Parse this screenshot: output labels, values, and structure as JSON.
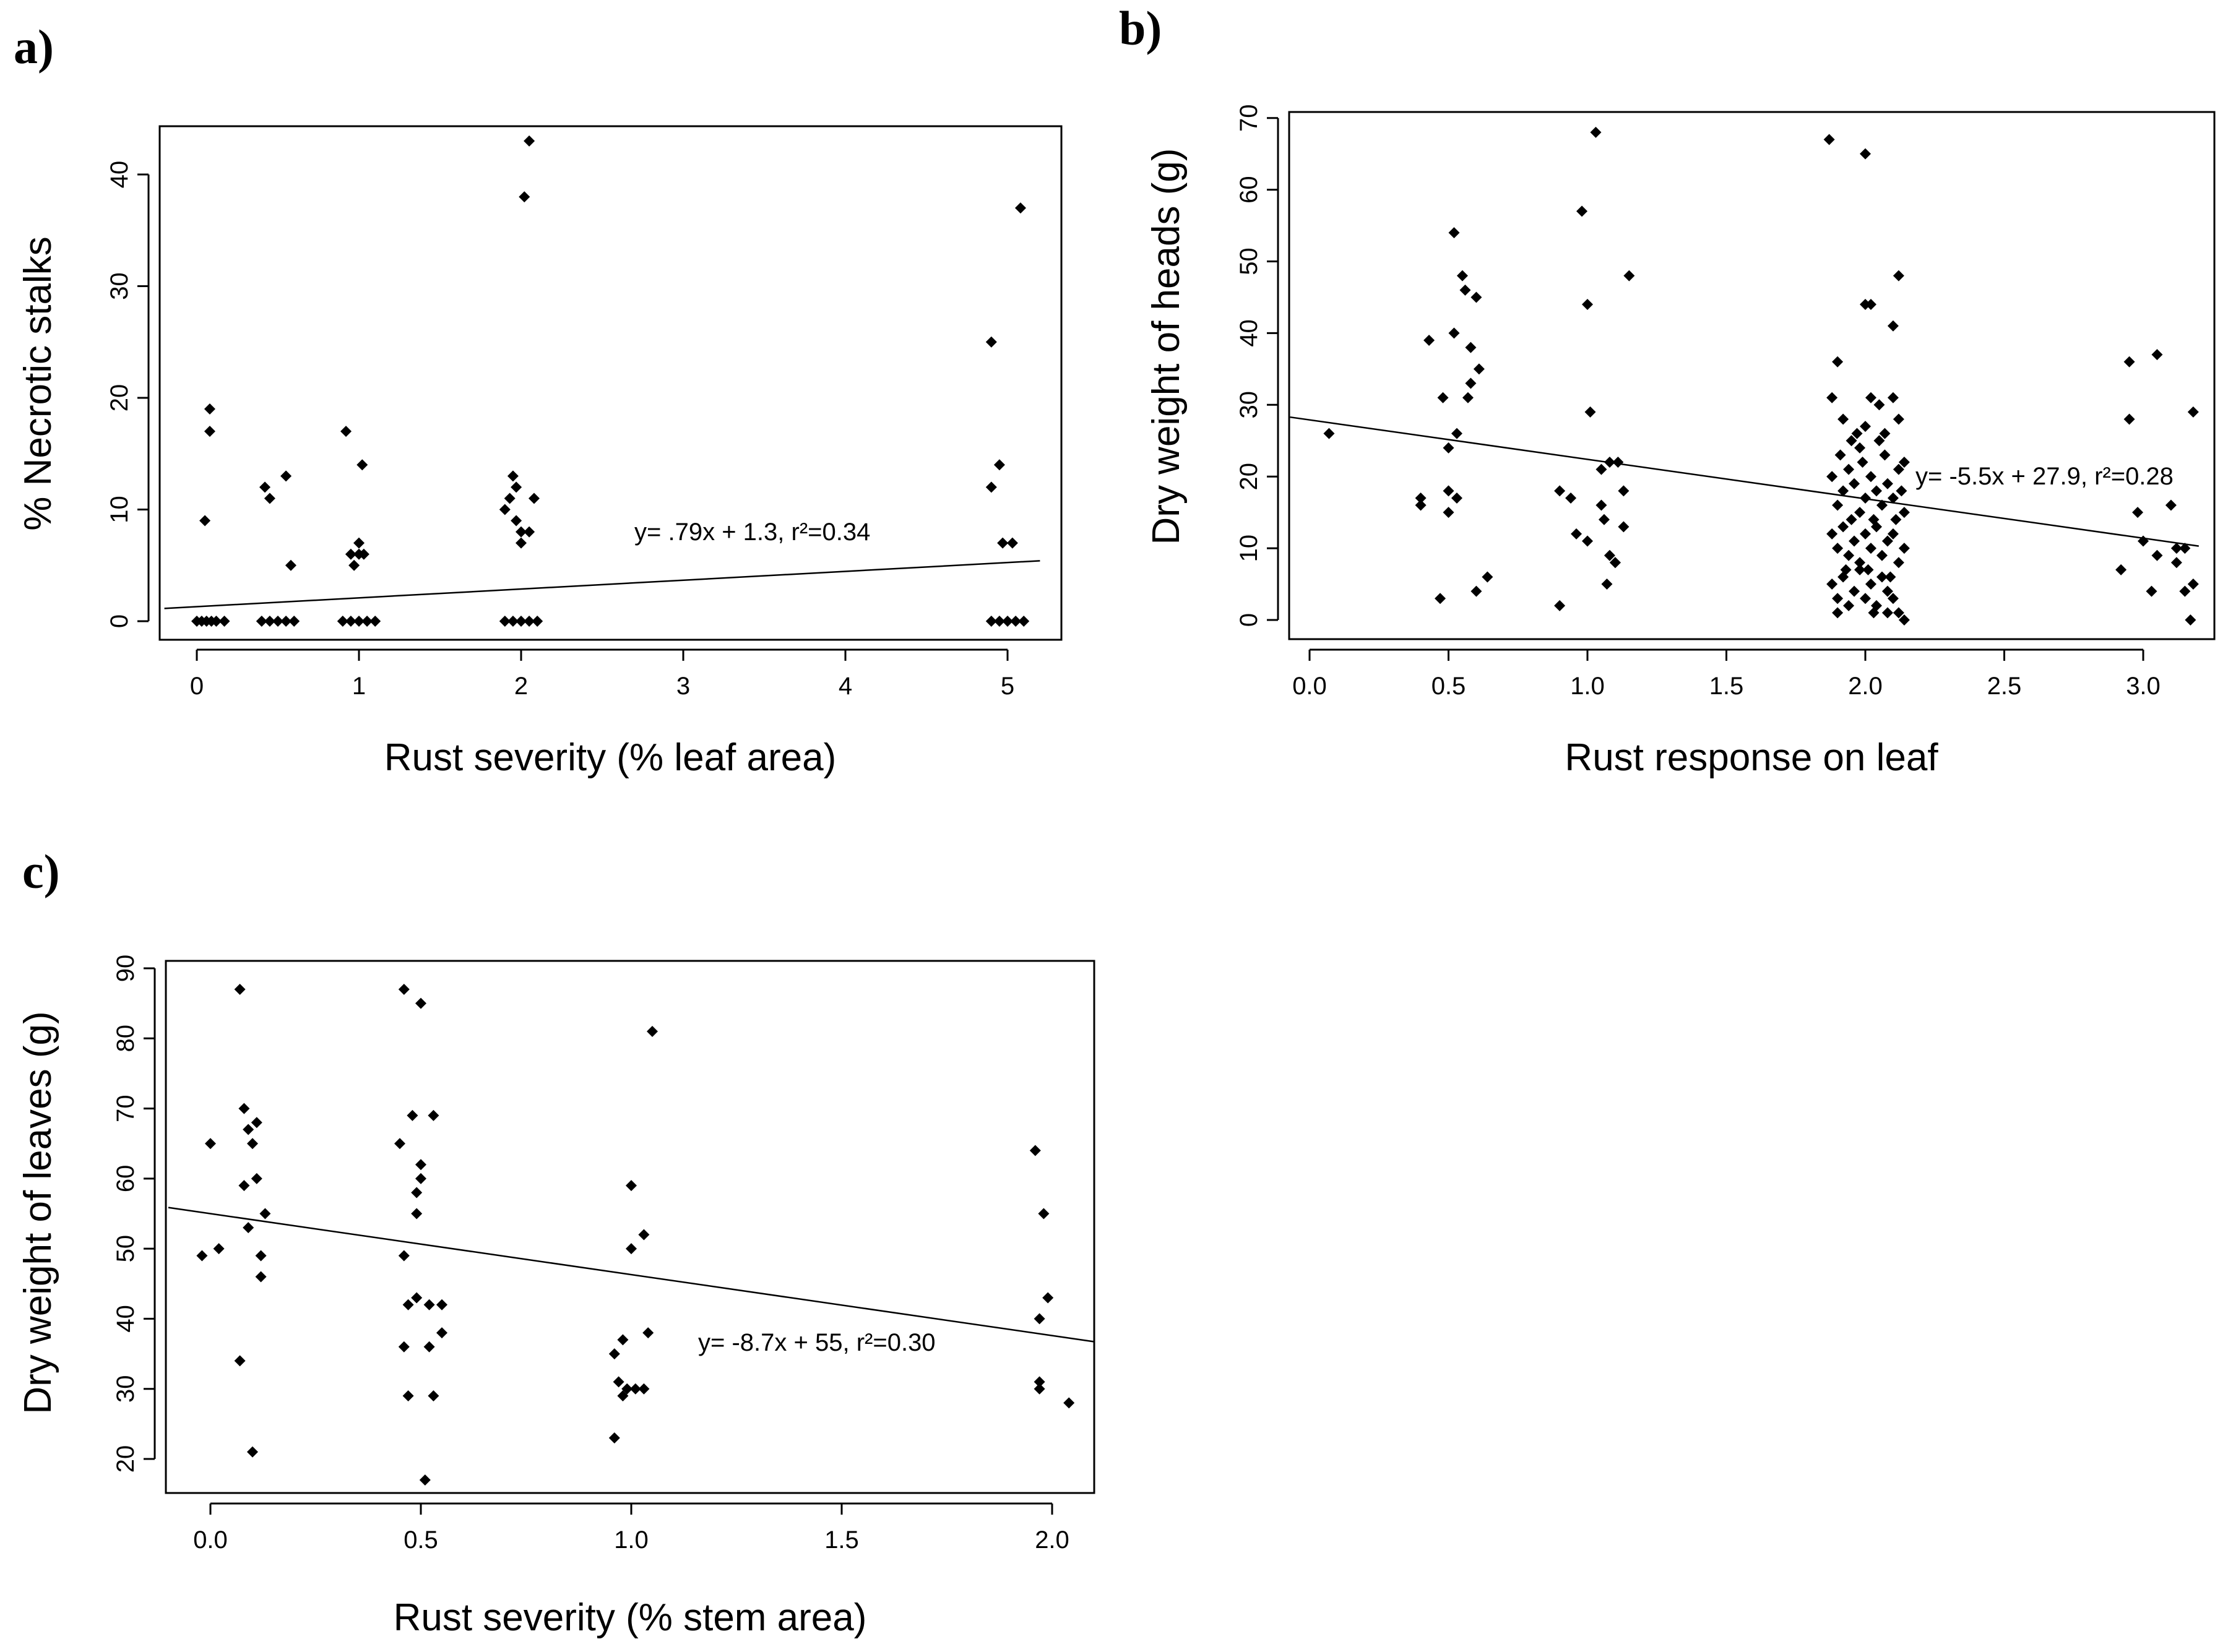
{
  "chart_data": [
    {
      "type": "scatter",
      "panel": "a)",
      "xlabel": "Rust severity (% leaf area)",
      "ylabel": "% Necrotic stalks",
      "x_ticks": [
        "0",
        "1",
        "2",
        "3",
        "4",
        "5"
      ],
      "y_ticks": [
        "0",
        "10",
        "20",
        "30",
        "40"
      ],
      "ylim": [
        -2,
        45
      ],
      "regression": {
        "label": "y= .79x + 1.3, r²=0.34",
        "slope": 0.79,
        "intercept": 1.3
      },
      "points": [
        [
          0.0,
          0
        ],
        [
          0.03,
          0
        ],
        [
          0.06,
          0
        ],
        [
          0.09,
          0
        ],
        [
          0.12,
          0
        ],
        [
          0.17,
          0
        ],
        [
          0.05,
          9
        ],
        [
          0.08,
          17
        ],
        [
          0.08,
          19
        ],
        [
          0.4,
          0
        ],
        [
          0.45,
          0
        ],
        [
          0.5,
          0
        ],
        [
          0.55,
          0
        ],
        [
          0.6,
          0
        ],
        [
          0.42,
          12
        ],
        [
          0.45,
          11
        ],
        [
          0.55,
          13
        ],
        [
          0.58,
          5
        ],
        [
          0.9,
          0
        ],
        [
          0.95,
          0
        ],
        [
          1.0,
          0
        ],
        [
          1.05,
          0
        ],
        [
          1.1,
          0
        ],
        [
          0.92,
          17
        ],
        [
          0.95,
          6
        ],
        [
          0.97,
          5
        ],
        [
          1.0,
          6
        ],
        [
          1.0,
          7
        ],
        [
          1.02,
          14
        ],
        [
          1.03,
          6
        ],
        [
          1.9,
          0
        ],
        [
          1.95,
          0
        ],
        [
          2.0,
          0
        ],
        [
          2.05,
          0
        ],
        [
          2.1,
          0
        ],
        [
          1.9,
          10
        ],
        [
          1.93,
          11
        ],
        [
          1.95,
          13
        ],
        [
          1.97,
          12
        ],
        [
          1.97,
          9
        ],
        [
          2.0,
          8
        ],
        [
          2.0,
          7
        ],
        [
          2.02,
          38
        ],
        [
          2.05,
          43
        ],
        [
          2.05,
          8
        ],
        [
          2.08,
          11
        ],
        [
          4.9,
          0
        ],
        [
          4.95,
          0
        ],
        [
          5.0,
          0
        ],
        [
          5.05,
          0
        ],
        [
          5.1,
          0
        ],
        [
          4.9,
          25
        ],
        [
          4.9,
          12
        ],
        [
          4.95,
          14
        ],
        [
          4.97,
          7
        ],
        [
          5.03,
          7
        ],
        [
          5.08,
          37
        ]
      ]
    },
    {
      "type": "scatter",
      "panel": "b)",
      "xlabel": "Rust response on leaf",
      "ylabel": "Dry weight of heads (g)",
      "x_ticks": [
        "0.0",
        "0.5",
        "1.0",
        "1.5",
        "2.0",
        "2.5",
        "3.0"
      ],
      "y_ticks": [
        "0",
        "10",
        "20",
        "30",
        "40",
        "50",
        "60",
        "70"
      ],
      "xlim": [
        -0.06,
        3.2
      ],
      "ylim": [
        -2,
        70.5
      ],
      "regression": {
        "label": "y= -5.5x + 27.9, r²=0.28",
        "slope": -5.5,
        "intercept": 27.9
      },
      "points": [
        [
          0.07,
          26
        ],
        [
          0.4,
          16
        ],
        [
          0.4,
          17
        ],
        [
          0.43,
          39
        ],
        [
          0.47,
          3
        ],
        [
          0.48,
          31
        ],
        [
          0.5,
          15
        ],
        [
          0.5,
          18
        ],
        [
          0.5,
          24
        ],
        [
          0.52,
          40
        ],
        [
          0.52,
          54
        ],
        [
          0.53,
          26
        ],
        [
          0.53,
          17
        ],
        [
          0.55,
          48
        ],
        [
          0.56,
          46
        ],
        [
          0.57,
          31
        ],
        [
          0.58,
          38
        ],
        [
          0.58,
          33
        ],
        [
          0.6,
          45
        ],
        [
          0.61,
          35
        ],
        [
          0.6,
          4
        ],
        [
          0.64,
          6
        ],
        [
          0.9,
          2
        ],
        [
          0.9,
          18
        ],
        [
          0.94,
          17
        ],
        [
          0.96,
          12
        ],
        [
          0.98,
          57
        ],
        [
          1.0,
          11
        ],
        [
          1.0,
          44
        ],
        [
          1.01,
          29
        ],
        [
          1.03,
          68
        ],
        [
          1.05,
          21
        ],
        [
          1.05,
          16
        ],
        [
          1.06,
          14
        ],
        [
          1.07,
          5
        ],
        [
          1.08,
          9
        ],
        [
          1.08,
          22
        ],
        [
          1.1,
          8
        ],
        [
          1.1,
          8
        ],
        [
          1.11,
          22
        ],
        [
          1.13,
          13
        ],
        [
          1.15,
          48
        ],
        [
          1.13,
          18
        ],
        [
          1.87,
          67
        ],
        [
          2.0,
          65
        ],
        [
          2.02,
          44
        ],
        [
          2.0,
          44
        ],
        [
          2.1,
          41
        ],
        [
          2.12,
          48
        ],
        [
          1.88,
          31
        ],
        [
          1.9,
          36
        ],
        [
          1.92,
          28
        ],
        [
          1.95,
          25
        ],
        [
          1.98,
          24
        ],
        [
          2.0,
          27
        ],
        [
          2.02,
          31
        ],
        [
          2.05,
          30
        ],
        [
          2.07,
          26
        ],
        [
          2.1,
          31
        ],
        [
          2.12,
          28
        ],
        [
          2.14,
          22
        ],
        [
          1.88,
          20
        ],
        [
          1.9,
          16
        ],
        [
          1.92,
          18
        ],
        [
          1.94,
          21
        ],
        [
          1.96,
          19
        ],
        [
          1.98,
          15
        ],
        [
          2.0,
          17
        ],
        [
          2.02,
          20
        ],
        [
          2.04,
          18
        ],
        [
          2.06,
          16
        ],
        [
          2.08,
          19
        ],
        [
          2.1,
          17
        ],
        [
          2.12,
          21
        ],
        [
          2.14,
          15
        ],
        [
          1.88,
          12
        ],
        [
          1.9,
          10
        ],
        [
          1.92,
          13
        ],
        [
          1.94,
          9
        ],
        [
          1.96,
          11
        ],
        [
          1.98,
          8
        ],
        [
          2.0,
          12
        ],
        [
          2.02,
          10
        ],
        [
          2.04,
          13
        ],
        [
          2.06,
          9
        ],
        [
          2.08,
          11
        ],
        [
          2.1,
          12
        ],
        [
          2.12,
          8
        ],
        [
          2.14,
          10
        ],
        [
          1.88,
          5
        ],
        [
          1.9,
          3
        ],
        [
          1.92,
          6
        ],
        [
          1.94,
          2
        ],
        [
          1.96,
          4
        ],
        [
          1.98,
          7
        ],
        [
          2.0,
          3
        ],
        [
          2.02,
          5
        ],
        [
          2.04,
          2
        ],
        [
          2.06,
          6
        ],
        [
          2.08,
          4
        ],
        [
          2.1,
          3
        ],
        [
          2.12,
          1
        ],
        [
          2.14,
          0
        ],
        [
          1.91,
          23
        ],
        [
          1.95,
          14
        ],
        [
          1.99,
          22
        ],
        [
          2.03,
          14
        ],
        [
          2.07,
          23
        ],
        [
          2.11,
          14
        ],
        [
          1.93,
          7
        ],
        [
          1.97,
          26
        ],
        [
          2.01,
          7
        ],
        [
          2.05,
          25
        ],
        [
          2.09,
          6
        ],
        [
          2.13,
          18
        ],
        [
          2.03,
          1
        ],
        [
          2.08,
          1
        ],
        [
          1.9,
          1
        ],
        [
          2.92,
          7
        ],
        [
          2.95,
          36
        ],
        [
          2.95,
          28
        ],
        [
          2.98,
          15
        ],
        [
          3.0,
          11
        ],
        [
          3.03,
          4
        ],
        [
          3.05,
          37
        ],
        [
          3.05,
          9
        ],
        [
          3.1,
          16
        ],
        [
          3.12,
          10
        ],
        [
          3.12,
          8
        ],
        [
          3.15,
          4
        ],
        [
          3.15,
          10
        ],
        [
          3.17,
          0
        ],
        [
          3.18,
          29
        ],
        [
          3.18,
          5
        ]
      ]
    },
    {
      "type": "scatter",
      "panel": "c)",
      "xlabel": "Rust severity (% stem area)",
      "ylabel": "Dry weight of leaves (g)",
      "x_ticks": [
        "0.0",
        "0.5",
        "1.0",
        "1.5",
        "2.0"
      ],
      "y_ticks": [
        "20",
        "30",
        "40",
        "50",
        "60",
        "70",
        "80",
        "90"
      ],
      "xlim": [
        -0.1,
        2.1
      ],
      "ylim": [
        15,
        90.5
      ],
      "regression": {
        "label": "y= -8.7x + 55, r²=0.30",
        "slope": -8.7,
        "intercept": 55
      },
      "points": [
        [
          0.0,
          65
        ],
        [
          -0.02,
          49
        ],
        [
          0.02,
          50
        ],
        [
          0.07,
          87
        ],
        [
          0.07,
          34
        ],
        [
          0.08,
          70
        ],
        [
          0.08,
          59
        ],
        [
          0.09,
          67
        ],
        [
          0.09,
          53
        ],
        [
          0.1,
          65
        ],
        [
          0.1,
          21
        ],
        [
          0.11,
          68
        ],
        [
          0.11,
          60
        ],
        [
          0.12,
          49
        ],
        [
          0.12,
          46
        ],
        [
          0.13,
          55
        ],
        [
          0.46,
          87
        ],
        [
          0.45,
          65
        ],
        [
          0.46,
          49
        ],
        [
          0.47,
          42
        ],
        [
          0.46,
          36
        ],
        [
          0.47,
          29
        ],
        [
          0.48,
          69
        ],
        [
          0.49,
          55
        ],
        [
          0.49,
          58
        ],
        [
          0.49,
          43
        ],
        [
          0.5,
          60
        ],
        [
          0.5,
          62
        ],
        [
          0.5,
          85
        ],
        [
          0.51,
          17
        ],
        [
          0.52,
          36
        ],
        [
          0.52,
          42
        ],
        [
          0.53,
          29
        ],
        [
          0.53,
          69
        ],
        [
          0.55,
          42
        ],
        [
          0.55,
          38
        ],
        [
          0.96,
          35
        ],
        [
          0.96,
          23
        ],
        [
          0.97,
          31
        ],
        [
          0.98,
          37
        ],
        [
          0.98,
          29
        ],
        [
          0.99,
          30
        ],
        [
          1.0,
          59
        ],
        [
          1.0,
          50
        ],
        [
          1.01,
          30
        ],
        [
          1.03,
          52
        ],
        [
          1.03,
          30
        ],
        [
          1.04,
          38
        ],
        [
          1.05,
          81
        ],
        [
          1.96,
          64
        ],
        [
          1.97,
          40
        ],
        [
          1.97,
          31
        ],
        [
          1.97,
          30
        ],
        [
          1.98,
          55
        ],
        [
          1.99,
          43
        ],
        [
          2.04,
          28
        ]
      ]
    }
  ]
}
